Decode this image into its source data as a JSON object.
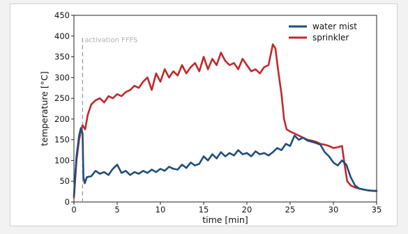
{
  "chart_data": {
    "type": "line",
    "xlabel": "time [min]",
    "ylabel": "temperature [°C]",
    "xlim": [
      0,
      35
    ],
    "ylim": [
      0,
      450
    ],
    "xticks": [
      0,
      5,
      10,
      15,
      20,
      25,
      30,
      35
    ],
    "yticks": [
      0,
      50,
      100,
      150,
      200,
      250,
      300,
      350,
      400,
      450
    ],
    "grid": false,
    "legend_position": "top-right",
    "annotations": [
      {
        "text": "activation FFFS",
        "x": 1.0,
        "y": 385,
        "style": "dashed-vertical-line"
      }
    ],
    "series": [
      {
        "name": "water mist",
        "color": "#1f4e79",
        "x": [
          0,
          0.3,
          0.6,
          0.8,
          1.0,
          1.1,
          1.25,
          1.5,
          2,
          2.5,
          3,
          3.5,
          4,
          4.5,
          5,
          5.5,
          6,
          6.5,
          7,
          7.5,
          8,
          8.5,
          9,
          9.5,
          10,
          10.5,
          11,
          11.5,
          12,
          12.5,
          13,
          13.5,
          14,
          14.5,
          15,
          15.5,
          16,
          16.5,
          17,
          17.5,
          18,
          18.5,
          19,
          19.5,
          20,
          20.5,
          21,
          21.5,
          22,
          22.5,
          23,
          23.5,
          24,
          24.5,
          25,
          25.5,
          26,
          26.5,
          27,
          27.5,
          28,
          28.5,
          29,
          29.5,
          30,
          30.5,
          31,
          31.5,
          32,
          32.5,
          33,
          33.5,
          34,
          34.5,
          35
        ],
        "y": [
          15,
          110,
          160,
          178,
          165,
          60,
          45,
          60,
          62,
          75,
          68,
          72,
          65,
          80,
          90,
          70,
          75,
          65,
          72,
          68,
          75,
          70,
          78,
          72,
          80,
          75,
          85,
          80,
          78,
          90,
          82,
          95,
          88,
          92,
          110,
          100,
          115,
          105,
          120,
          110,
          118,
          112,
          125,
          115,
          118,
          110,
          122,
          115,
          118,
          112,
          120,
          130,
          125,
          140,
          135,
          160,
          150,
          155,
          148,
          145,
          142,
          138,
          120,
          110,
          95,
          88,
          100,
          90,
          60,
          40,
          32,
          30,
          28,
          27,
          27
        ]
      },
      {
        "name": "sprinkler",
        "color": "#c0282d",
        "x": [
          0,
          0.3,
          0.6,
          0.8,
          1.0,
          1.3,
          1.6,
          2,
          2.5,
          3,
          3.5,
          4,
          4.5,
          5,
          5.5,
          6,
          6.5,
          7,
          7.5,
          8,
          8.5,
          9,
          9.5,
          10,
          10.5,
          11,
          11.5,
          12,
          12.5,
          13,
          13.5,
          14,
          14.5,
          15,
          15.5,
          16,
          16.5,
          17,
          17.5,
          18,
          18.5,
          19,
          19.5,
          20,
          20.5,
          21,
          21.5,
          22,
          22.5,
          23,
          23.3,
          23.6,
          24,
          24.3,
          24.6,
          25,
          25.5,
          26,
          26.5,
          27,
          27.5,
          28,
          28.5,
          29,
          29.5,
          30,
          30.5,
          31,
          31.3,
          31.6,
          32,
          32.5,
          33,
          33.5,
          34,
          34.5,
          35
        ],
        "y": [
          10,
          100,
          150,
          170,
          185,
          175,
          210,
          235,
          245,
          250,
          240,
          255,
          250,
          260,
          255,
          265,
          270,
          280,
          275,
          290,
          300,
          270,
          310,
          290,
          320,
          300,
          315,
          305,
          330,
          310,
          325,
          335,
          315,
          350,
          320,
          345,
          330,
          360,
          340,
          330,
          335,
          320,
          345,
          330,
          315,
          320,
          310,
          325,
          330,
          380,
          370,
          320,
          260,
          200,
          175,
          170,
          165,
          160,
          155,
          150,
          148,
          145,
          140,
          138,
          135,
          130,
          132,
          135,
          90,
          50,
          40,
          35,
          32,
          30,
          28,
          27,
          26
        ]
      }
    ]
  }
}
